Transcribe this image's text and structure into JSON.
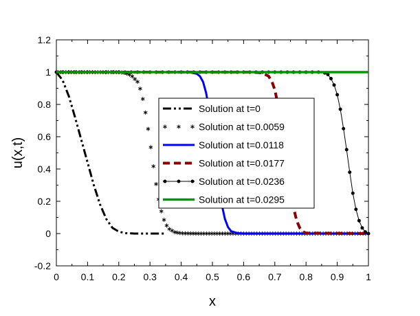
{
  "chart_data": {
    "type": "line",
    "xlabel": "x",
    "ylabel": "u(x,t)",
    "xlim": [
      0,
      1
    ],
    "ylim": [
      -0.2,
      1.2
    ],
    "xticks": [
      "0",
      "0.1",
      "0.2",
      "0.3",
      "0.4",
      "0.5",
      "0.6",
      "0.7",
      "0.8",
      "0.9",
      "1"
    ],
    "yticks": [
      "-0.2",
      "0",
      "0.2",
      "0.4",
      "0.6",
      "0.8",
      "1",
      "1.2"
    ],
    "legend_position": "center",
    "series": [
      {
        "name": "Solution at t=0",
        "style": "dash-dot-dot",
        "color": "#000000",
        "x": [
          0,
          0.02,
          0.04,
          0.06,
          0.08,
          0.1,
          0.12,
          0.14,
          0.16,
          0.18,
          0.2,
          0.22,
          0.25,
          0.3,
          0.35
        ],
        "y": [
          1.0,
          0.95,
          0.85,
          0.72,
          0.58,
          0.44,
          0.3,
          0.18,
          0.09,
          0.035,
          0.012,
          0.003,
          0.0,
          0.0,
          0.0
        ]
      },
      {
        "name": "Solution at t=0.0059",
        "style": "star-markers",
        "color": "#000000",
        "x": [
          0,
          0.05,
          0.1,
          0.15,
          0.2,
          0.22,
          0.24,
          0.26,
          0.27,
          0.28,
          0.29,
          0.3,
          0.31,
          0.32,
          0.33,
          0.34,
          0.35,
          0.36,
          0.38,
          0.4,
          0.45,
          0.5,
          0.55,
          0.6
        ],
        "y": [
          1.0,
          1.0,
          1.0,
          1.0,
          1.0,
          0.995,
          0.98,
          0.94,
          0.89,
          0.81,
          0.7,
          0.57,
          0.43,
          0.3,
          0.19,
          0.11,
          0.06,
          0.03,
          0.008,
          0.002,
          0.0,
          0.0,
          0.0,
          0.0
        ]
      },
      {
        "name": "Solution at t=0.0118",
        "style": "solid",
        "color": "#0000ff",
        "x": [
          0,
          0.4,
          0.43,
          0.45,
          0.46,
          0.47,
          0.48,
          0.49,
          0.5,
          0.51,
          0.52,
          0.53,
          0.54,
          0.55,
          0.56,
          0.58,
          0.6,
          1.0
        ],
        "y": [
          1.0,
          1.0,
          0.998,
          0.99,
          0.975,
          0.94,
          0.87,
          0.76,
          0.62,
          0.46,
          0.31,
          0.18,
          0.09,
          0.04,
          0.015,
          0.003,
          0.0,
          0.0
        ]
      },
      {
        "name": "Solution at t=0.0177",
        "style": "dashed",
        "color": "#8b0000",
        "x": [
          0,
          0.63,
          0.66,
          0.68,
          0.69,
          0.7,
          0.71,
          0.72,
          0.73,
          0.74,
          0.75,
          0.76,
          0.77,
          0.78,
          0.79,
          0.8,
          1.0
        ],
        "y": [
          1.0,
          1.0,
          0.995,
          0.975,
          0.945,
          0.89,
          0.8,
          0.68,
          0.54,
          0.4,
          0.27,
          0.16,
          0.08,
          0.035,
          0.012,
          0.003,
          0.0
        ]
      },
      {
        "name": "Solution at t=0.0236",
        "style": "solid-dot-markers",
        "color": "#000000",
        "x": [
          0,
          0.8,
          0.84,
          0.86,
          0.87,
          0.88,
          0.89,
          0.9,
          0.91,
          0.92,
          0.93,
          0.94,
          0.95,
          0.96,
          0.97,
          0.98,
          0.99,
          1.0
        ],
        "y": [
          1.0,
          1.0,
          1.0,
          0.995,
          0.985,
          0.96,
          0.92,
          0.86,
          0.77,
          0.65,
          0.52,
          0.38,
          0.25,
          0.15,
          0.08,
          0.035,
          0.01,
          0.0
        ]
      },
      {
        "name": "Solution at t=0.0295",
        "style": "solid-thick",
        "color": "#009900",
        "x": [
          0,
          1.0
        ],
        "y": [
          1.0,
          1.0
        ]
      }
    ]
  }
}
